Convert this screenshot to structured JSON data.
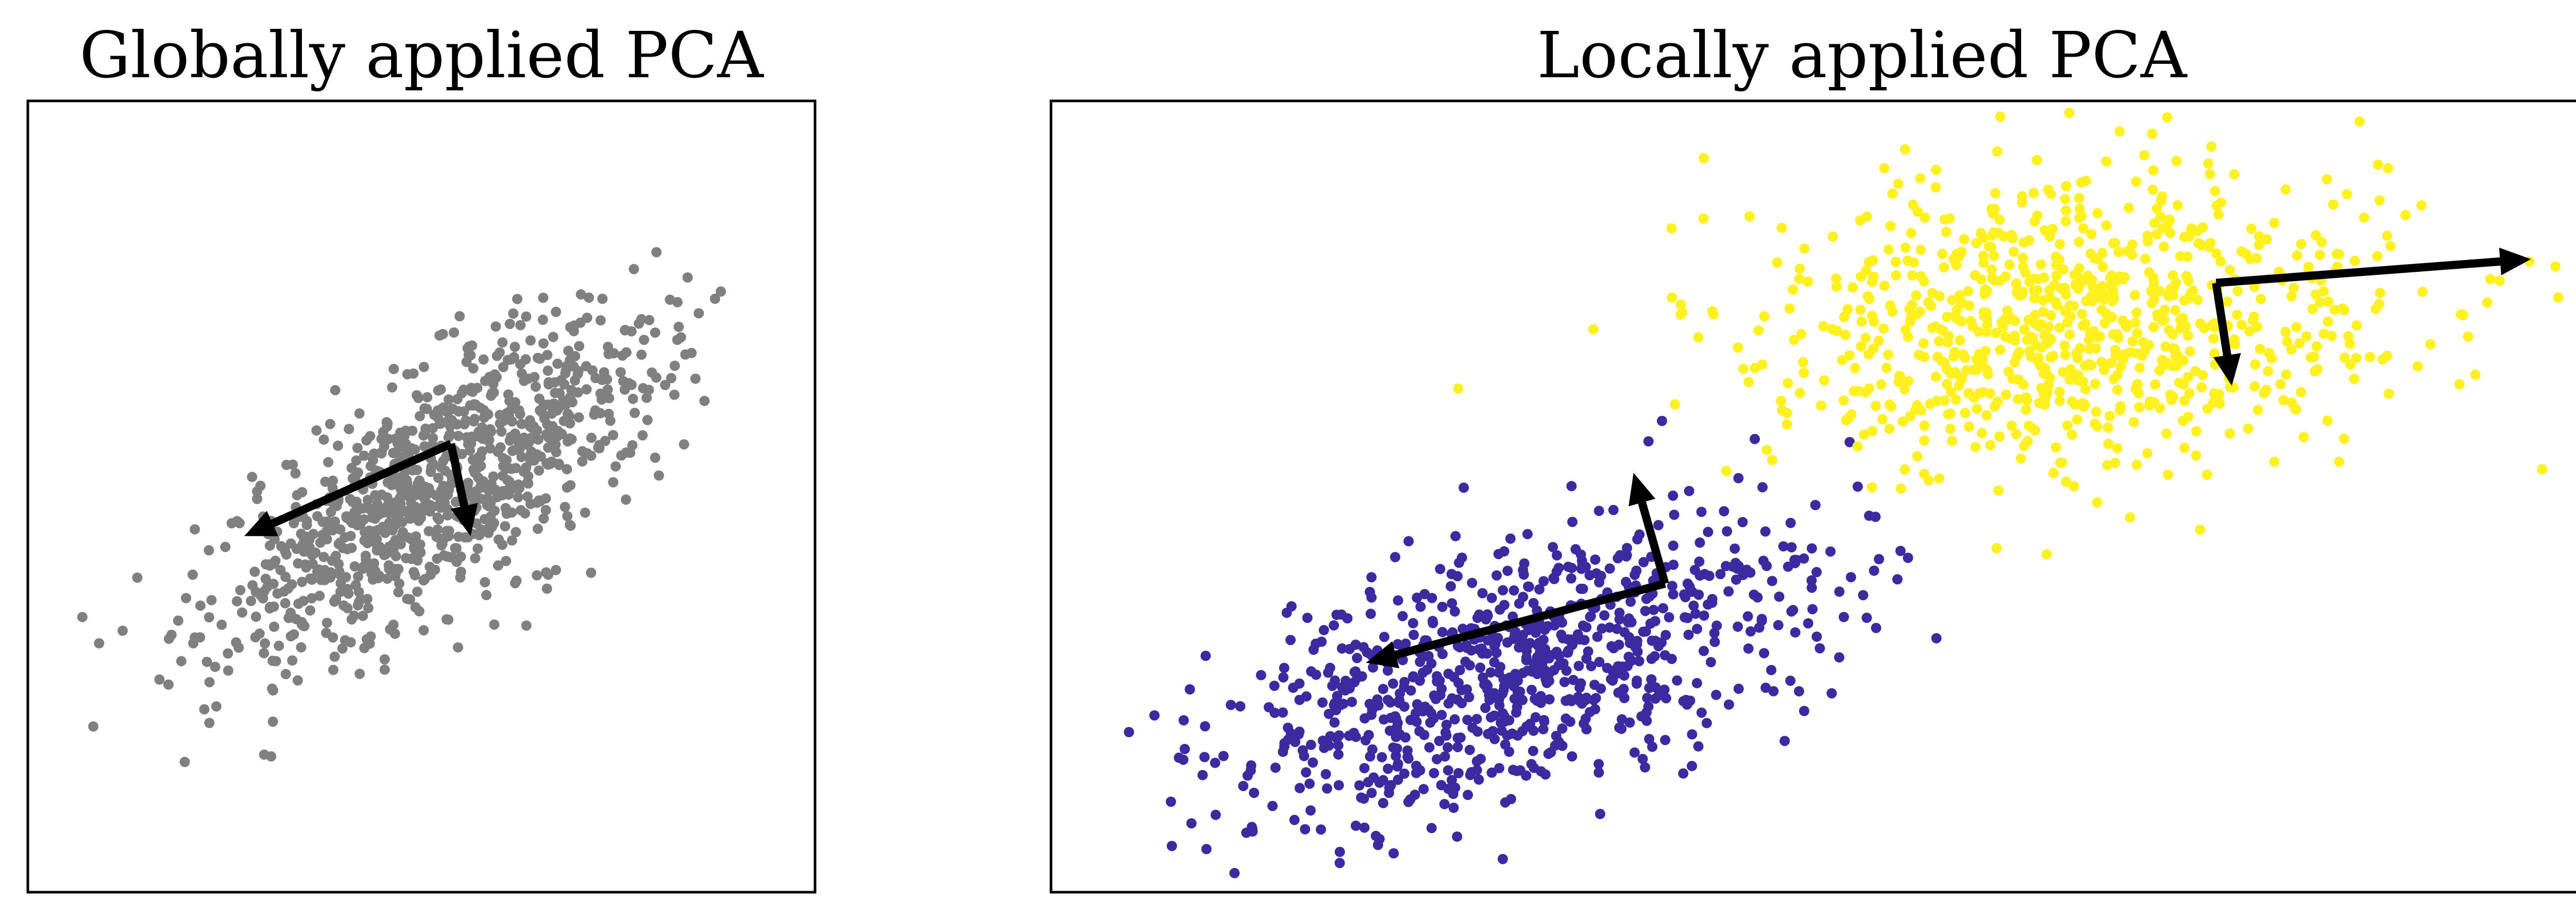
{
  "chart_data": [
    {
      "type": "scatter",
      "title": "Globally applied PCA",
      "xlabel": "",
      "ylabel": "",
      "xlim": [
        -4.0,
        4.0
      ],
      "ylim": [
        -3.0,
        3.0
      ],
      "grid": false,
      "ticks": false,
      "colors": {
        "points": "#808080",
        "arrows": "#000000"
      },
      "point_cloud": {
        "n": 1000,
        "center": [
          0.2,
          0.1
        ],
        "major_angle_deg": 25,
        "major_sd": 1.25,
        "minor_sd": 0.4
      },
      "series": [
        {
          "color": "#808080",
          "points": []
        }
      ],
      "arrows": [
        {
          "from": [
            0.3,
            0.4
          ],
          "to": [
            -1.8,
            -0.3
          ]
        },
        {
          "from": [
            0.3,
            0.4
          ],
          "to": [
            0.5,
            -0.3
          ]
        }
      ]
    },
    {
      "type": "scatter",
      "title": "Locally applied PCA",
      "xlabel": "",
      "ylabel": "",
      "xlim": [
        -1.0,
        9.0
      ],
      "ylim": [
        -2.0,
        3.0
      ],
      "grid": false,
      "ticks": false,
      "colors": {
        "cluster_a": "#3b2aa0",
        "cluster_b": "#fef11f",
        "arrows": "#000000"
      },
      "point_clouds": [
        {
          "n": 850,
          "center": [
            2.0,
            -0.6
          ],
          "major_angle_deg": 18,
          "major_sd": 1.0,
          "minor_sd": 0.38
        },
        {
          "n": 850,
          "center": [
            5.5,
            1.6
          ],
          "major_angle_deg": 5,
          "major_sd": 1.05,
          "minor_sd": 0.45
        }
      ],
      "series": [
        {
          "color": "#3b2aa0",
          "points": []
        },
        {
          "color": "#fef11f",
          "points": []
        }
      ],
      "arrows": [
        {
          "from": [
            2.9,
            -0.05
          ],
          "to": [
            1.0,
            -0.55
          ]
        },
        {
          "from": [
            2.9,
            -0.05
          ],
          "to": [
            2.7,
            0.65
          ]
        },
        {
          "from": [
            6.4,
            1.85
          ],
          "to": [
            8.4,
            2.0
          ]
        },
        {
          "from": [
            6.4,
            1.85
          ],
          "to": [
            6.5,
            1.2
          ]
        }
      ]
    }
  ]
}
